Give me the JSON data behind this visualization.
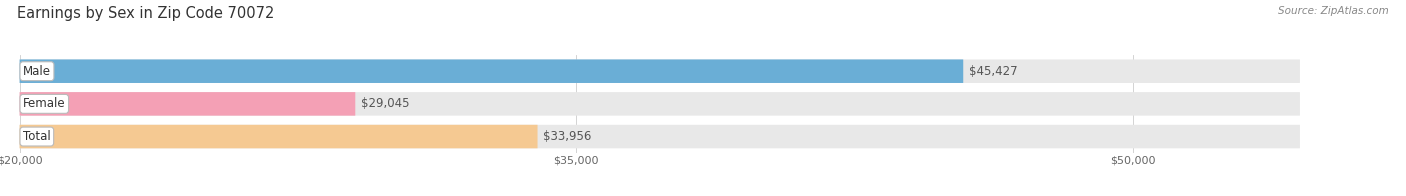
{
  "title": "Earnings by Sex in Zip Code 70072",
  "source": "Source: ZipAtlas.com",
  "categories": [
    "Male",
    "Female",
    "Total"
  ],
  "values": [
    45427,
    29045,
    33956
  ],
  "bar_colors": [
    "#6aaed6",
    "#f4a0b5",
    "#f5c992"
  ],
  "bar_bg_color": "#e8e8e8",
  "value_labels": [
    "$45,427",
    "$29,045",
    "$33,956"
  ],
  "xmin": 20000,
  "xmax": 50000,
  "xticks": [
    20000,
    35000,
    50000
  ],
  "xtick_labels": [
    "$20,000",
    "$35,000",
    "$50,000"
  ],
  "title_fontsize": 10.5,
  "bar_label_fontsize": 8.5,
  "value_fontsize": 8.5,
  "figsize": [
    14.06,
    1.96
  ],
  "dpi": 100
}
